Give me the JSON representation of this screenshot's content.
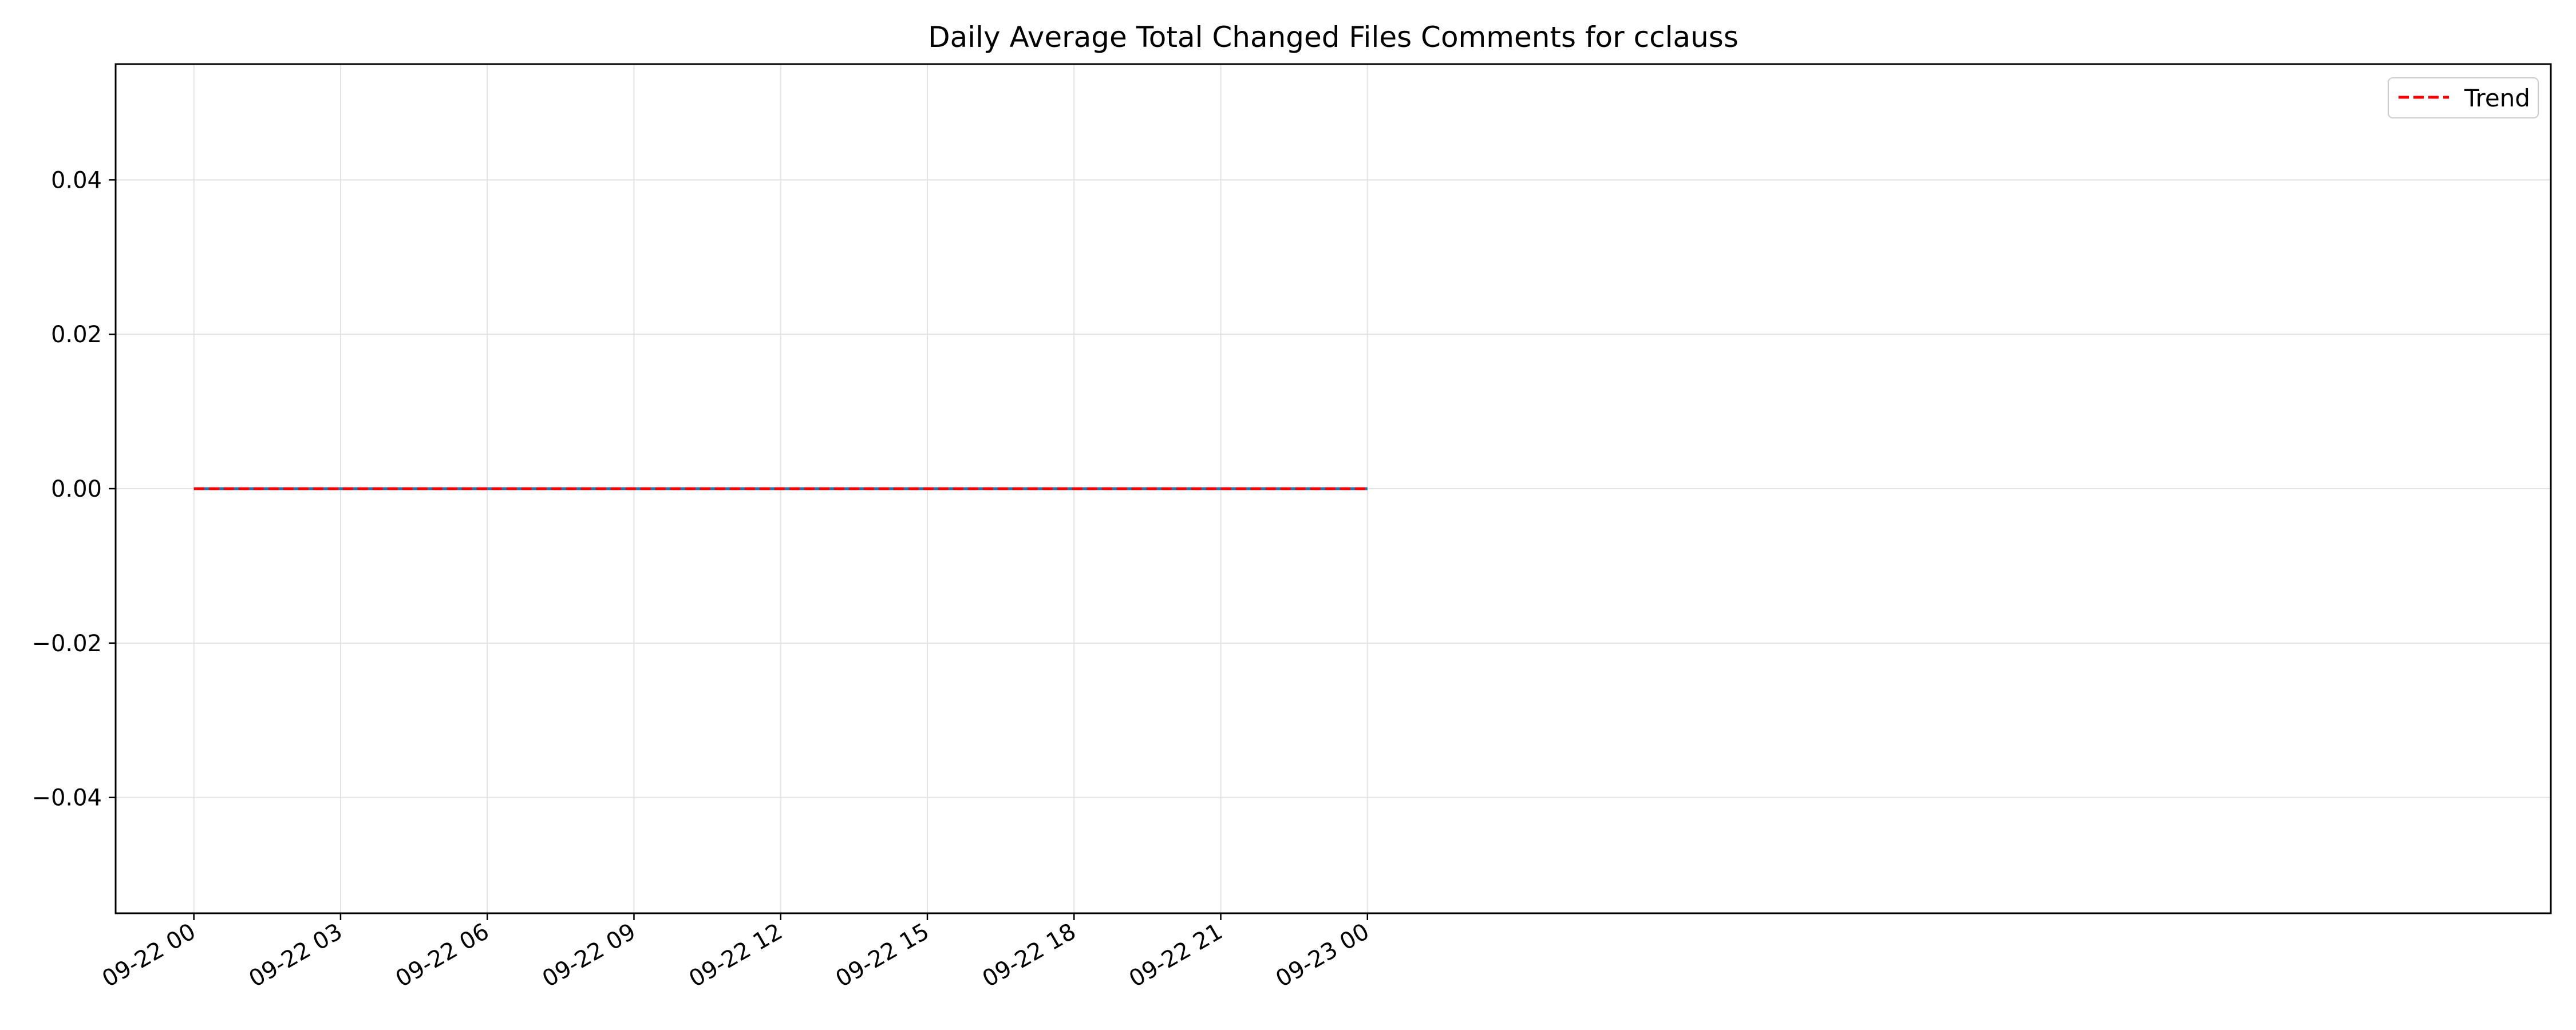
{
  "chart_data": {
    "type": "line",
    "title": "Daily Average Total Changed Files Comments for cclauss",
    "xlabel": "",
    "ylabel": "",
    "grid": true,
    "legend_position": "top-right",
    "x_ticks": [
      "09-22 00",
      "09-22 03",
      "09-22 06",
      "09-22 09",
      "09-22 12",
      "09-22 15",
      "09-22 18",
      "09-22 21",
      "09-23 00"
    ],
    "x_range_hours": [
      -1.6,
      48.2
    ],
    "y_ticks": [
      0.04,
      0.02,
      0.0,
      -0.02,
      -0.04
    ],
    "y_tick_labels": [
      "0.04",
      "0.02",
      "0.00",
      "−0.02",
      "−0.04"
    ],
    "ylim": [
      -0.055,
      0.055
    ],
    "series": [
      {
        "name": "",
        "style": "solid",
        "color": "#1f77b4",
        "x": [
          "09-22 00",
          "09-23 00"
        ],
        "values": [
          0,
          0
        ]
      },
      {
        "name": "Trend",
        "style": "dashed",
        "color": "#ff0000",
        "x": [
          "09-22 00",
          "09-23 00"
        ],
        "values": [
          0,
          0
        ]
      }
    ]
  }
}
